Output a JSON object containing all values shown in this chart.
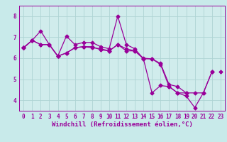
{
  "background_color": "#c8eaea",
  "plot_bg_color": "#d0ecec",
  "grid_color": "#aed4d4",
  "line_color": "#990099",
  "marker": "D",
  "markersize": 2.5,
  "linewidth": 0.9,
  "xlabel": "Windchill (Refroidissement éolien,°C)",
  "xlabel_fontsize": 6.5,
  "tick_fontsize": 5.5,
  "ylim": [
    3.5,
    8.5
  ],
  "xlim": [
    -0.5,
    23.5
  ],
  "yticks": [
    4,
    5,
    6,
    7,
    8
  ],
  "xticks": [
    0,
    1,
    2,
    3,
    4,
    5,
    6,
    7,
    8,
    9,
    10,
    11,
    12,
    13,
    14,
    15,
    16,
    17,
    18,
    19,
    20,
    21,
    22,
    23
  ],
  "series": [
    [
      6.5,
      6.85,
      7.3,
      6.65,
      6.1,
      7.05,
      6.65,
      6.75,
      6.75,
      6.55,
      6.45,
      8.0,
      6.65,
      6.45,
      5.97,
      4.35,
      4.7,
      4.65,
      4.35,
      4.2,
      3.65,
      4.35,
      5.35,
      null
    ],
    [
      6.5,
      6.85,
      6.65,
      6.65,
      6.1,
      6.25,
      6.5,
      6.55,
      6.5,
      6.45,
      6.35,
      6.65,
      6.45,
      6.35,
      5.97,
      5.97,
      5.7,
      4.65,
      4.35,
      4.35,
      4.35,
      4.35,
      5.35,
      null
    ],
    [
      6.5,
      6.85,
      6.65,
      6.65,
      6.1,
      6.25,
      6.5,
      6.55,
      6.55,
      6.4,
      6.35,
      6.65,
      6.35,
      6.35,
      6.0,
      5.97,
      5.75,
      4.75,
      4.65,
      4.35,
      null,
      null,
      null,
      null
    ],
    [
      6.5,
      null,
      null,
      null,
      null,
      null,
      null,
      null,
      null,
      null,
      null,
      null,
      null,
      null,
      null,
      null,
      null,
      null,
      null,
      null,
      null,
      null,
      null,
      5.35
    ]
  ]
}
